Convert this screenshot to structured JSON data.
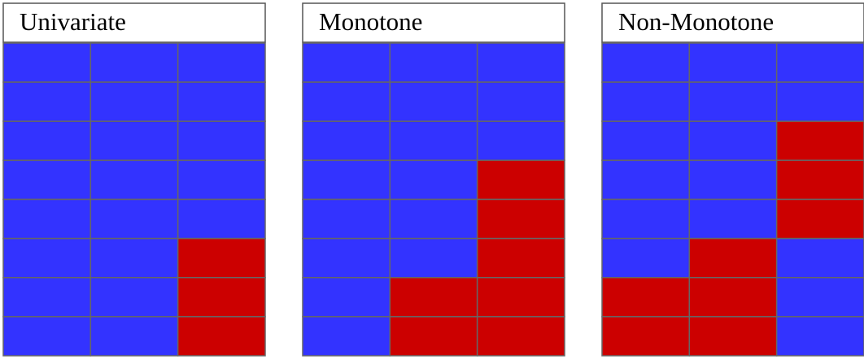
{
  "panels": [
    {
      "title": "Univariate",
      "cells": [
        [
          "#3333ff",
          "#3333ff",
          "#3333ff"
        ],
        [
          "#3333ff",
          "#3333ff",
          "#3333ff"
        ],
        [
          "#3333ff",
          "#3333ff",
          "#3333ff"
        ],
        [
          "#3333ff",
          "#3333ff",
          "#3333ff"
        ],
        [
          "#3333ff",
          "#3333ff",
          "#3333ff"
        ],
        [
          "#3333ff",
          "#3333ff",
          "#cc0000"
        ],
        [
          "#3333ff",
          "#3333ff",
          "#cc0000"
        ],
        [
          "#3333ff",
          "#3333ff",
          "#cc0000"
        ]
      ]
    },
    {
      "title": "Monotone",
      "cells": [
        [
          "#3333ff",
          "#3333ff",
          "#3333ff"
        ],
        [
          "#3333ff",
          "#3333ff",
          "#3333ff"
        ],
        [
          "#3333ff",
          "#3333ff",
          "#3333ff"
        ],
        [
          "#3333ff",
          "#3333ff",
          "#cc0000"
        ],
        [
          "#3333ff",
          "#3333ff",
          "#cc0000"
        ],
        [
          "#3333ff",
          "#3333ff",
          "#cc0000"
        ],
        [
          "#3333ff",
          "#cc0000",
          "#cc0000"
        ],
        [
          "#3333ff",
          "#cc0000",
          "#cc0000"
        ]
      ]
    },
    {
      "title": "Non-Monotone",
      "cells": [
        [
          "#3333ff",
          "#3333ff",
          "#3333ff"
        ],
        [
          "#3333ff",
          "#3333ff",
          "#3333ff"
        ],
        [
          "#3333ff",
          "#3333ff",
          "#cc0000"
        ],
        [
          "#3333ff",
          "#3333ff",
          "#cc0000"
        ],
        [
          "#3333ff",
          "#3333ff",
          "#cc0000"
        ],
        [
          "#3333ff",
          "#cc0000",
          "#3333ff"
        ],
        [
          "#cc0000",
          "#cc0000",
          "#3333ff"
        ],
        [
          "#cc0000",
          "#cc0000",
          "#3333ff"
        ]
      ]
    }
  ]
}
